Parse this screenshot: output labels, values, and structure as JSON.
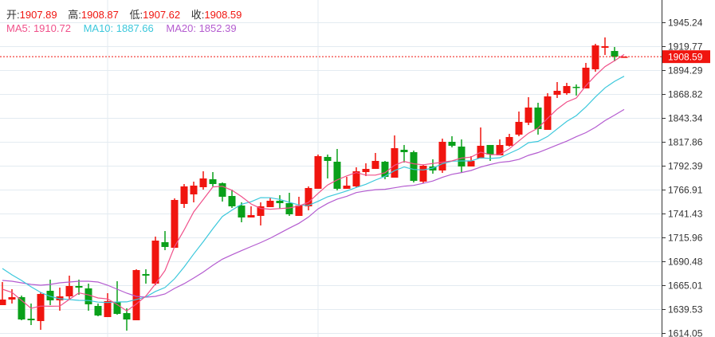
{
  "ohlc_header": {
    "open_label": "开:",
    "open": "1907.89",
    "high_label": "高:",
    "high": "1908.87",
    "low_label": "低:",
    "low": "1907.62",
    "close_label": "收:",
    "close": "1908.59"
  },
  "ma_header": {
    "ma5": "MA5: 1910.72",
    "ma10": "MA10: 1887.66",
    "ma20": "MA20: 1852.39"
  },
  "colors": {
    "up": "#f0150f",
    "down": "#0aa01a",
    "ma5": "#f0508a",
    "ma10": "#3cc8dc",
    "ma20": "#b45cd0",
    "grid": "#e3ebf1",
    "last_price": "#f0150f"
  },
  "chart_data": {
    "type": "candlestick",
    "ylim": [
      1609.8,
      1969.0
    ],
    "yticks": [
      "1945.24",
      "1919.77",
      "1894.29",
      "1868.82",
      "1843.34",
      "1817.86",
      "1792.39",
      "1766.91",
      "1741.43",
      "1715.96",
      "1690.48",
      "1665.01",
      "1639.53",
      "1614.05"
    ],
    "last_price": "1908.59",
    "grid": true,
    "candles": [
      [
        1643.78,
        1668.4,
        1643.78,
        1649.72
      ],
      [
        1649.72,
        1660.76,
        1645.47,
        1652.27
      ],
      [
        1652.27,
        1653.97,
        1627.64,
        1628.49
      ],
      [
        1629.34,
        1645.47,
        1622.55,
        1627.64
      ],
      [
        1626.79,
        1657.36,
        1617.45,
        1655.67
      ],
      [
        1659.06,
        1670.95,
        1643.78,
        1648.87
      ],
      [
        1648.87,
        1662.46,
        1637.83,
        1653.12
      ],
      [
        1653.12,
        1675.2,
        1650.57,
        1664.16
      ],
      [
        1664.16,
        1670.95,
        1654.82,
        1662.46
      ],
      [
        1661.61,
        1666.7,
        1637.83,
        1644.63
      ],
      [
        1642.93,
        1645.47,
        1631.89,
        1632.74
      ],
      [
        1631.04,
        1656.51,
        1631.04,
        1648.03
      ],
      [
        1647.18,
        1669.25,
        1633.59,
        1634.44
      ],
      [
        1635.28,
        1640.38,
        1616.6,
        1628.49
      ],
      [
        1627.64,
        1681.99,
        1627.64,
        1681.14
      ],
      [
        1676.9,
        1681.99,
        1666.7,
        1675.2
      ],
      [
        1666.7,
        1716.81,
        1665.01,
        1712.56
      ],
      [
        1710.86,
        1722.75,
        1702.37,
        1705.77
      ],
      [
        1704.92,
        1757.57,
        1704.92,
        1755.87
      ],
      [
        1751.62,
        1772.85,
        1747.38,
        1770.31
      ],
      [
        1761.82,
        1775.4,
        1753.32,
        1771.16
      ],
      [
        1769.46,
        1786.44,
        1766.91,
        1778.8
      ],
      [
        1777.95,
        1785.59,
        1770.31,
        1772.85
      ],
      [
        1773.7,
        1774.55,
        1754.17,
        1759.27
      ],
      [
        1760.12,
        1766.91,
        1747.38,
        1749.08
      ],
      [
        1749.93,
        1753.32,
        1732.09,
        1737.19
      ],
      [
        1737.19,
        1749.08,
        1737.19,
        1739.74
      ],
      [
        1738.89,
        1753.32,
        1728.7,
        1749.08
      ],
      [
        1748.23,
        1758.42,
        1748.23,
        1755.02
      ],
      [
        1755.02,
        1760.97,
        1746.53,
        1752.47
      ],
      [
        1752.47,
        1763.51,
        1738.89,
        1740.59
      ],
      [
        1738.89,
        1759.27,
        1738.89,
        1749.93
      ],
      [
        1749.08,
        1770.31,
        1744.83,
        1768.61
      ],
      [
        1767.76,
        1804.28,
        1767.76,
        1802.58
      ],
      [
        1801.73,
        1804.28,
        1778.8,
        1797.48
      ],
      [
        1796.63,
        1810.22,
        1766.06,
        1767.76
      ],
      [
        1767.76,
        1780.5,
        1767.76,
        1771.16
      ],
      [
        1770.31,
        1790.69,
        1769.46,
        1786.44
      ],
      [
        1785.59,
        1794.93,
        1781.35,
        1788.99
      ],
      [
        1788.99,
        1805.97,
        1788.99,
        1797.48
      ],
      [
        1796.63,
        1797.48,
        1777.95,
        1780.5
      ],
      [
        1779.65,
        1824.66,
        1779.65,
        1811.07
      ],
      [
        1809.37,
        1814.47,
        1795.78,
        1806.82
      ],
      [
        1806.82,
        1808.52,
        1774.55,
        1776.25
      ],
      [
        1775.4,
        1793.24,
        1773.7,
        1792.39
      ],
      [
        1791.54,
        1799.18,
        1783.89,
        1787.29
      ],
      [
        1787.29,
        1821.26,
        1784.74,
        1817.86
      ],
      [
        1817.86,
        1823.81,
        1811.92,
        1813.62
      ],
      [
        1812.77,
        1820.41,
        1784.74,
        1791.54
      ],
      [
        1791.54,
        1802.58,
        1791.54,
        1797.48
      ],
      [
        1800.03,
        1833.15,
        1800.03,
        1813.62
      ],
      [
        1814.47,
        1814.47,
        1797.48,
        1804.28
      ],
      [
        1803.43,
        1820.41,
        1803.43,
        1814.47
      ],
      [
        1813.62,
        1826.35,
        1812.77,
        1822.96
      ],
      [
        1825.51,
        1850.13,
        1823.81,
        1839.09
      ],
      [
        1838.24,
        1865.42,
        1835.7,
        1854.38
      ],
      [
        1854.38,
        1859.47,
        1825.51,
        1831.45
      ],
      [
        1830.6,
        1869.66,
        1830.6,
        1866.27
      ],
      [
        1867.97,
        1881.55,
        1864.57,
        1872.21
      ],
      [
        1869.66,
        1880.7,
        1867.97,
        1877.31
      ],
      [
        1876.46,
        1879.0,
        1867.12,
        1875.61
      ],
      [
        1874.76,
        1901.93,
        1874.76,
        1896.84
      ],
      [
        1895.14,
        1922.31,
        1892.59,
        1920.62
      ],
      [
        1918.07,
        1929.11,
        1910.43,
        1919.77
      ],
      [
        1914.67,
        1918.92,
        1903.63,
        1908.73
      ],
      [
        1907.89,
        1908.87,
        1907.62,
        1908.59
      ]
    ],
    "ma_leading": {
      "ma5": [
        1660.76,
        1657.36,
        1648.87,
        1640.38
      ],
      "ma10": [
        1682.84,
        1676.05,
        1670.1,
        1663.31,
        1657.36,
        1653.12,
        1650.57,
        1649.72,
        1648.87
      ],
      "ma20": [
        1670.1,
        1669.25,
        1667.55,
        1665.86,
        1665.01,
        1665.86,
        1667.55,
        1668.4,
        1669.25,
        1669.25,
        1668.4,
        1665.01,
        1660.76,
        1656.51,
        1653.12,
        1652.27,
        1653.12,
        1655.67,
        1661.61
      ]
    }
  }
}
